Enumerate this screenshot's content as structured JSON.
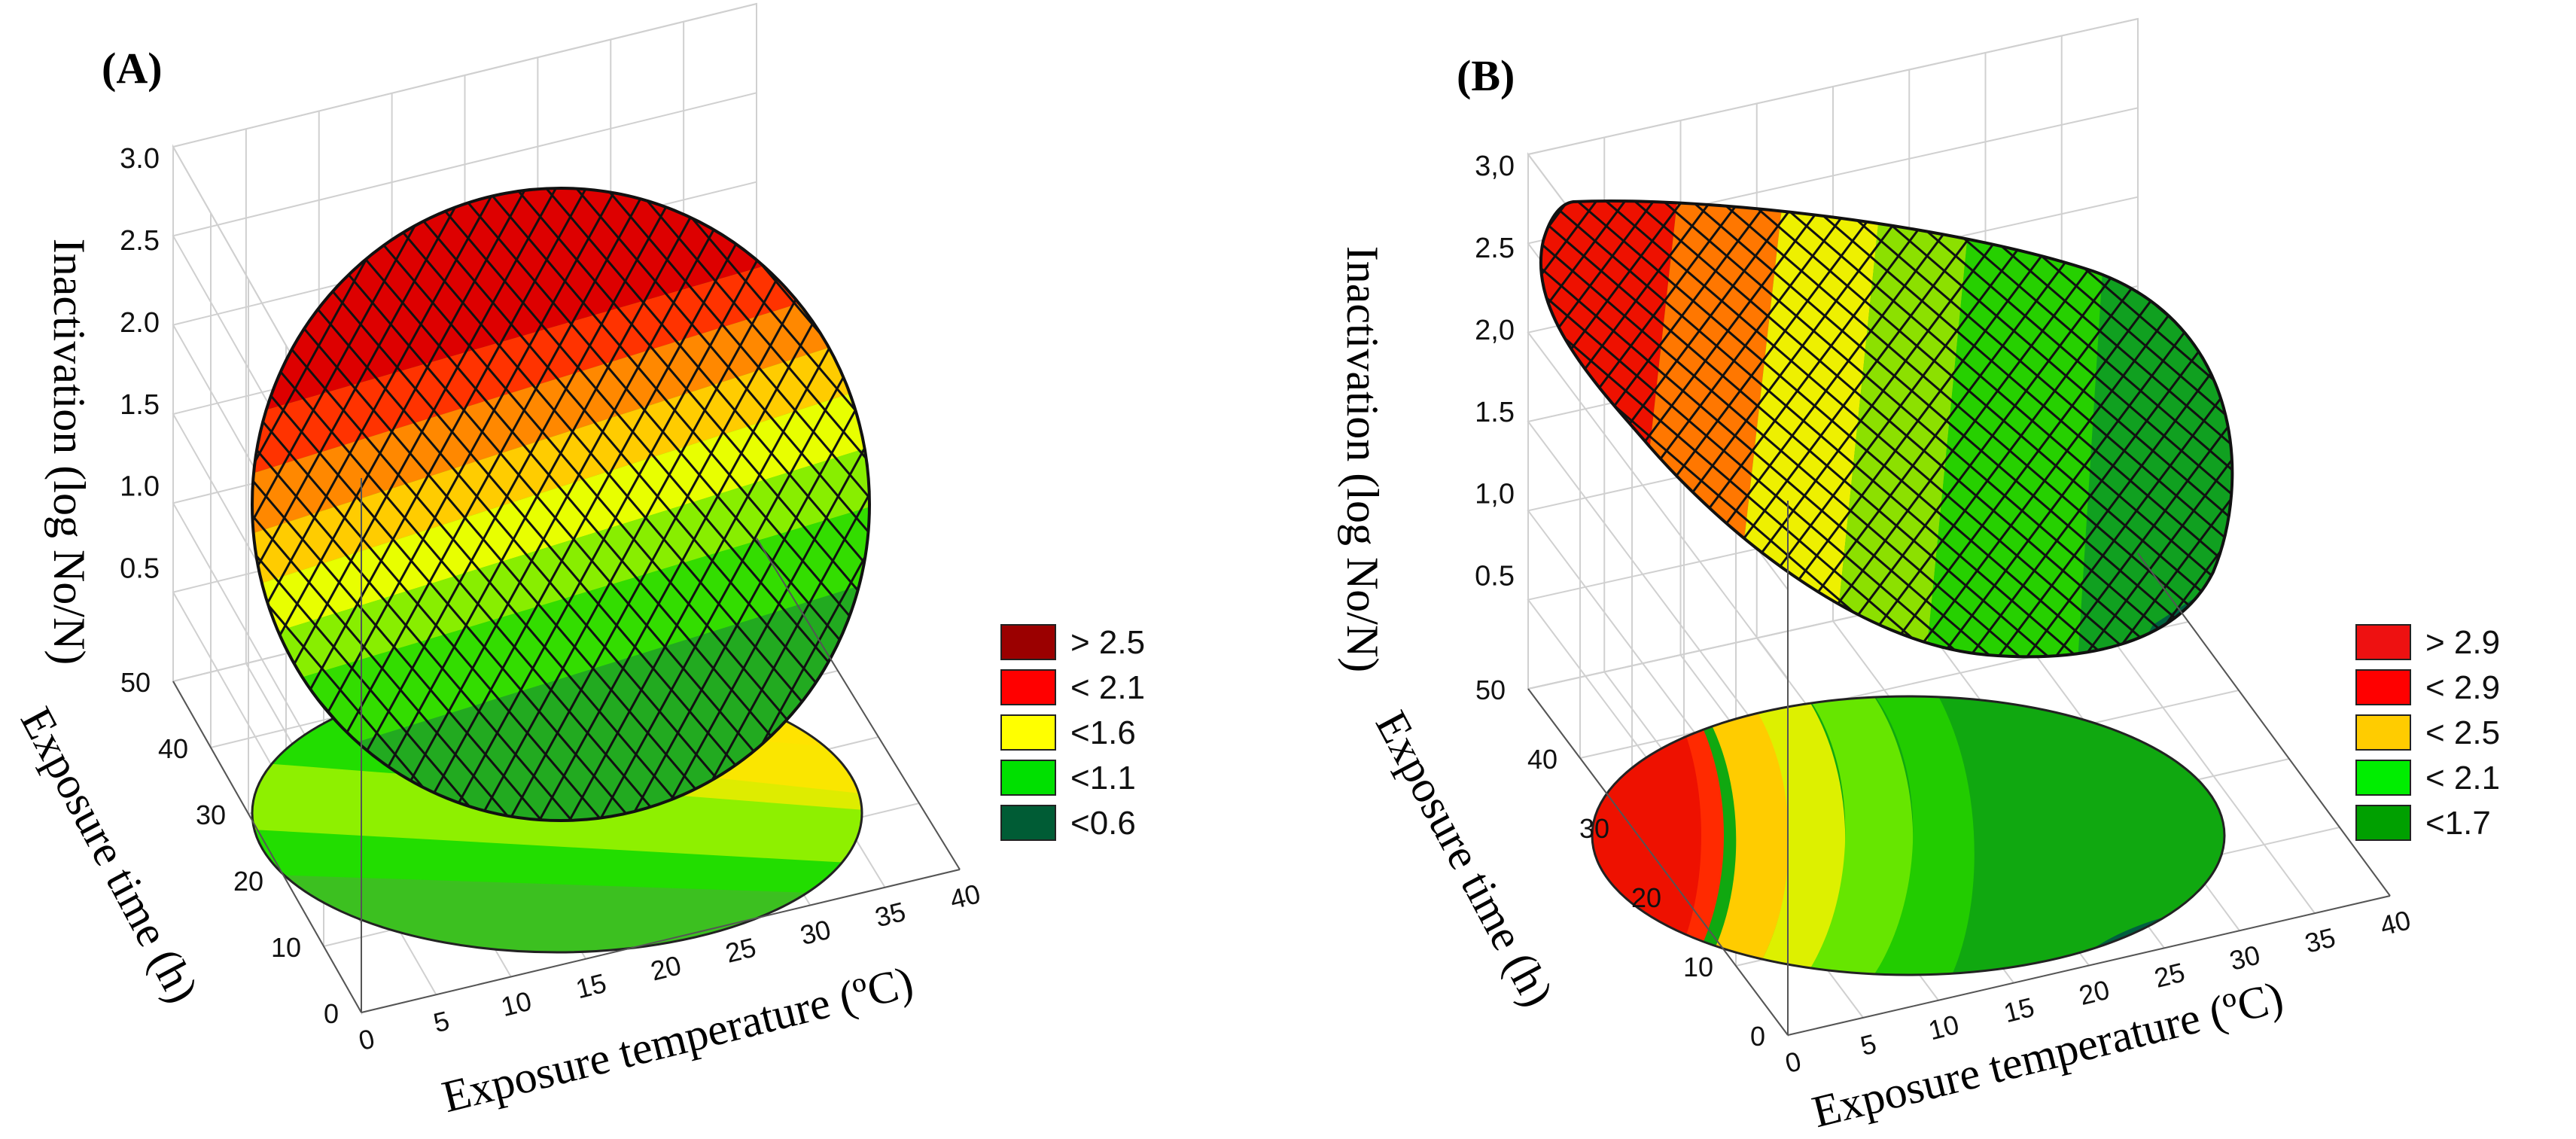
{
  "figure": {
    "background": "#ffffff",
    "grid_color": "#d0d0d0",
    "mesh_color": "#111111"
  },
  "chart_data": [
    {
      "panel_label": "(A)",
      "type": "surface3d",
      "zlabel": "Inactivation (log No/N)",
      "ylabel": "Exposure time (h)",
      "xlabel": "Exposure temperature (ºC)",
      "z_ticks": [
        "0.5",
        "1.0",
        "1.5",
        "2.0",
        "2.5",
        "3.0"
      ],
      "y_ticks": [
        "0",
        "10",
        "20",
        "30",
        "40",
        "50"
      ],
      "x_ticks": [
        "0",
        "5",
        "10",
        "15",
        "20",
        "25",
        "30",
        "35",
        "40"
      ],
      "zlim": [
        0,
        3.0
      ],
      "ylim": [
        0,
        50
      ],
      "xlim": [
        0,
        40
      ],
      "legend": [
        {
          "label": "> 2.5",
          "color": "#9b0000"
        },
        {
          "label": "< 2.1",
          "color": "#ff0000"
        },
        {
          "label": "<1.6",
          "color": "#ffff00"
        },
        {
          "label": "<1.1",
          "color": "#00e000"
        },
        {
          "label": "<0.6",
          "color": "#005c35"
        }
      ],
      "surface_levels": [
        0.6,
        1.1,
        1.6,
        2.1,
        2.5
      ]
    },
    {
      "panel_label": "(B)",
      "type": "surface3d",
      "zlabel": "Inactivation (log No/N)",
      "ylabel": "Exposure time (h)",
      "xlabel": "Exposure temperature (ºC)",
      "z_ticks": [
        "0.5",
        "1,0",
        "1.5",
        "2,0",
        "2.5",
        "3,0"
      ],
      "y_ticks": [
        "0",
        "10",
        "20",
        "30",
        "40",
        "50"
      ],
      "x_ticks": [
        "0",
        "5",
        "10",
        "15",
        "20",
        "25",
        "30",
        "35",
        "40"
      ],
      "zlim": [
        0,
        3.0
      ],
      "ylim": [
        0,
        50
      ],
      "xlim": [
        0,
        40
      ],
      "legend": [
        {
          "label": "> 2.9",
          "color": "#ee1111"
        },
        {
          "label": "< 2.9",
          "color": "#ff0000"
        },
        {
          "label": "< 2.5",
          "color": "#ffcc00"
        },
        {
          "label": "< 2.1",
          "color": "#00ee00"
        },
        {
          "label": "<1.7",
          "color": "#00a000"
        }
      ],
      "surface_levels": [
        1.7,
        2.1,
        2.5,
        2.9
      ]
    }
  ]
}
